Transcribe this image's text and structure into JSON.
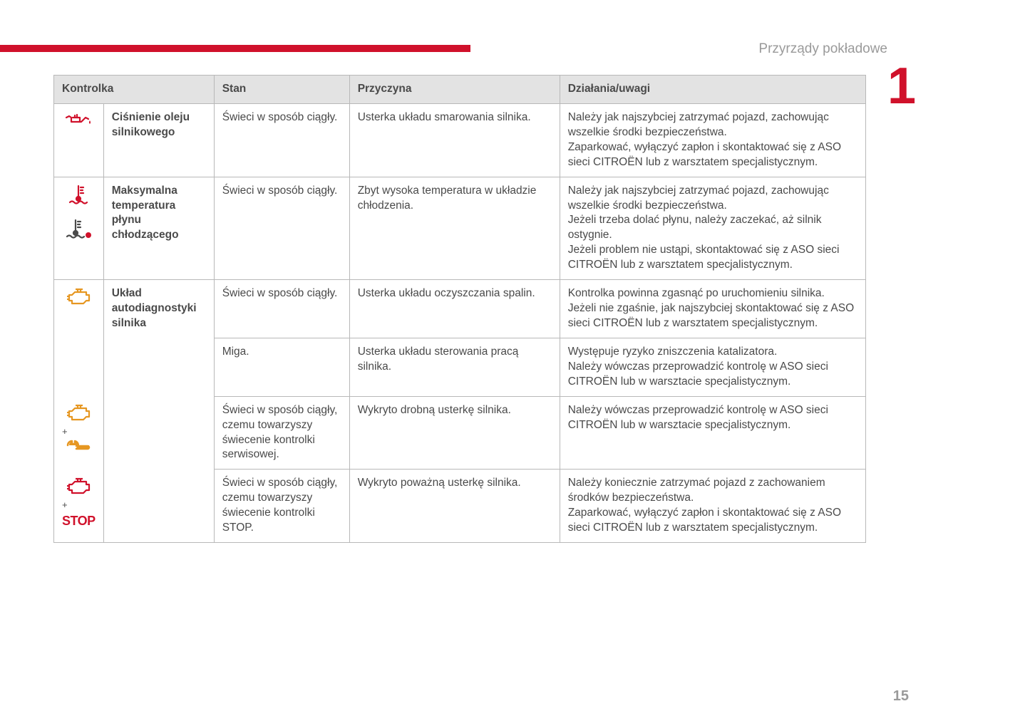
{
  "header": {
    "section_title": "Przyrządy pokładowe",
    "chapter_number": "1",
    "page_number": "15"
  },
  "colors": {
    "accent": "#d0112b",
    "icon_red": "#d0112b",
    "icon_orange": "#e69722",
    "text_gray": "#4a4a4a",
    "muted_gray": "#9a9a9a",
    "header_bg": "#e3e3e3",
    "border": "#b8b8b8"
  },
  "table": {
    "headers": {
      "indicator": "Kontrolka",
      "state": "Stan",
      "cause": "Przyczyna",
      "action": "Działania/uwagi"
    },
    "rows": {
      "oil": {
        "label": "Ciśnienie oleju silnikowego",
        "state": "Świeci w sposób ciągły.",
        "cause": "Usterka układu smarowania silnika.",
        "action": "Należy jak najszybciej zatrzymać pojazd, zachowując wszelkie środki bezpieczeństwa.\nZaparkować, wyłączyć zapłon i skontaktować się z ASO sieci CITROËN lub z warsztatem specjalistycznym."
      },
      "temp": {
        "label": "Maksymalna temperatura płynu chłodzącego",
        "state": "Świeci w sposób ciągły.",
        "cause": "Zbyt wysoka temperatura w układzie chłodzenia.",
        "action": "Należy jak najszybciej zatrzymać pojazd, zachowując wszelkie środki bezpieczeństwa.\nJeżeli trzeba dolać płynu, należy zaczekać, aż silnik ostygnie.\nJeżeli problem nie ustąpi, skontaktować się z ASO sieci CITROËN lub z warsztatem specjalistycznym."
      },
      "diag": {
        "label": "Układ autodiagnostyki silnika",
        "r1": {
          "state": "Świeci w sposób ciągły.",
          "cause": "Usterka układu oczyszczania spalin.",
          "action": "Kontrolka powinna zgasnąć po uruchomieniu silnika.\nJeżeli nie zgaśnie, jak najszybciej skontaktować się z ASO sieci CITROËN lub z warsztatem specjalistycznym."
        },
        "r2": {
          "state": "Miga.",
          "cause": "Usterka układu sterowania pracą silnika.",
          "action": "Występuje ryzyko zniszczenia katalizatora.\nNależy wówczas przeprowadzić kontrolę w ASO sieci CITROËN lub w warsztacie specjalistycznym."
        },
        "r3": {
          "state": "Świeci w sposób ciągły, czemu towarzyszy świecenie kontrolki serwisowej.",
          "cause": "Wykryto drobną usterkę silnika.",
          "action": "Należy wówczas przeprowadzić kontrolę w ASO sieci CITROËN lub w warsztacie specjalistycznym."
        },
        "r4": {
          "state": "Świeci w sposób ciągły, czemu towarzyszy świecenie kontrolki STOP.",
          "cause": "Wykryto poważną usterkę silnika.",
          "action": "Należy koniecznie zatrzymać pojazd z zachowaniem środków bezpieczeństwa.\nZaparkować, wyłączyć zapłon i skontaktować się z ASO sieci CITROËN lub z warsztatem specjalistycznym."
        },
        "plus": "+",
        "stop_label": "STOP"
      }
    }
  }
}
